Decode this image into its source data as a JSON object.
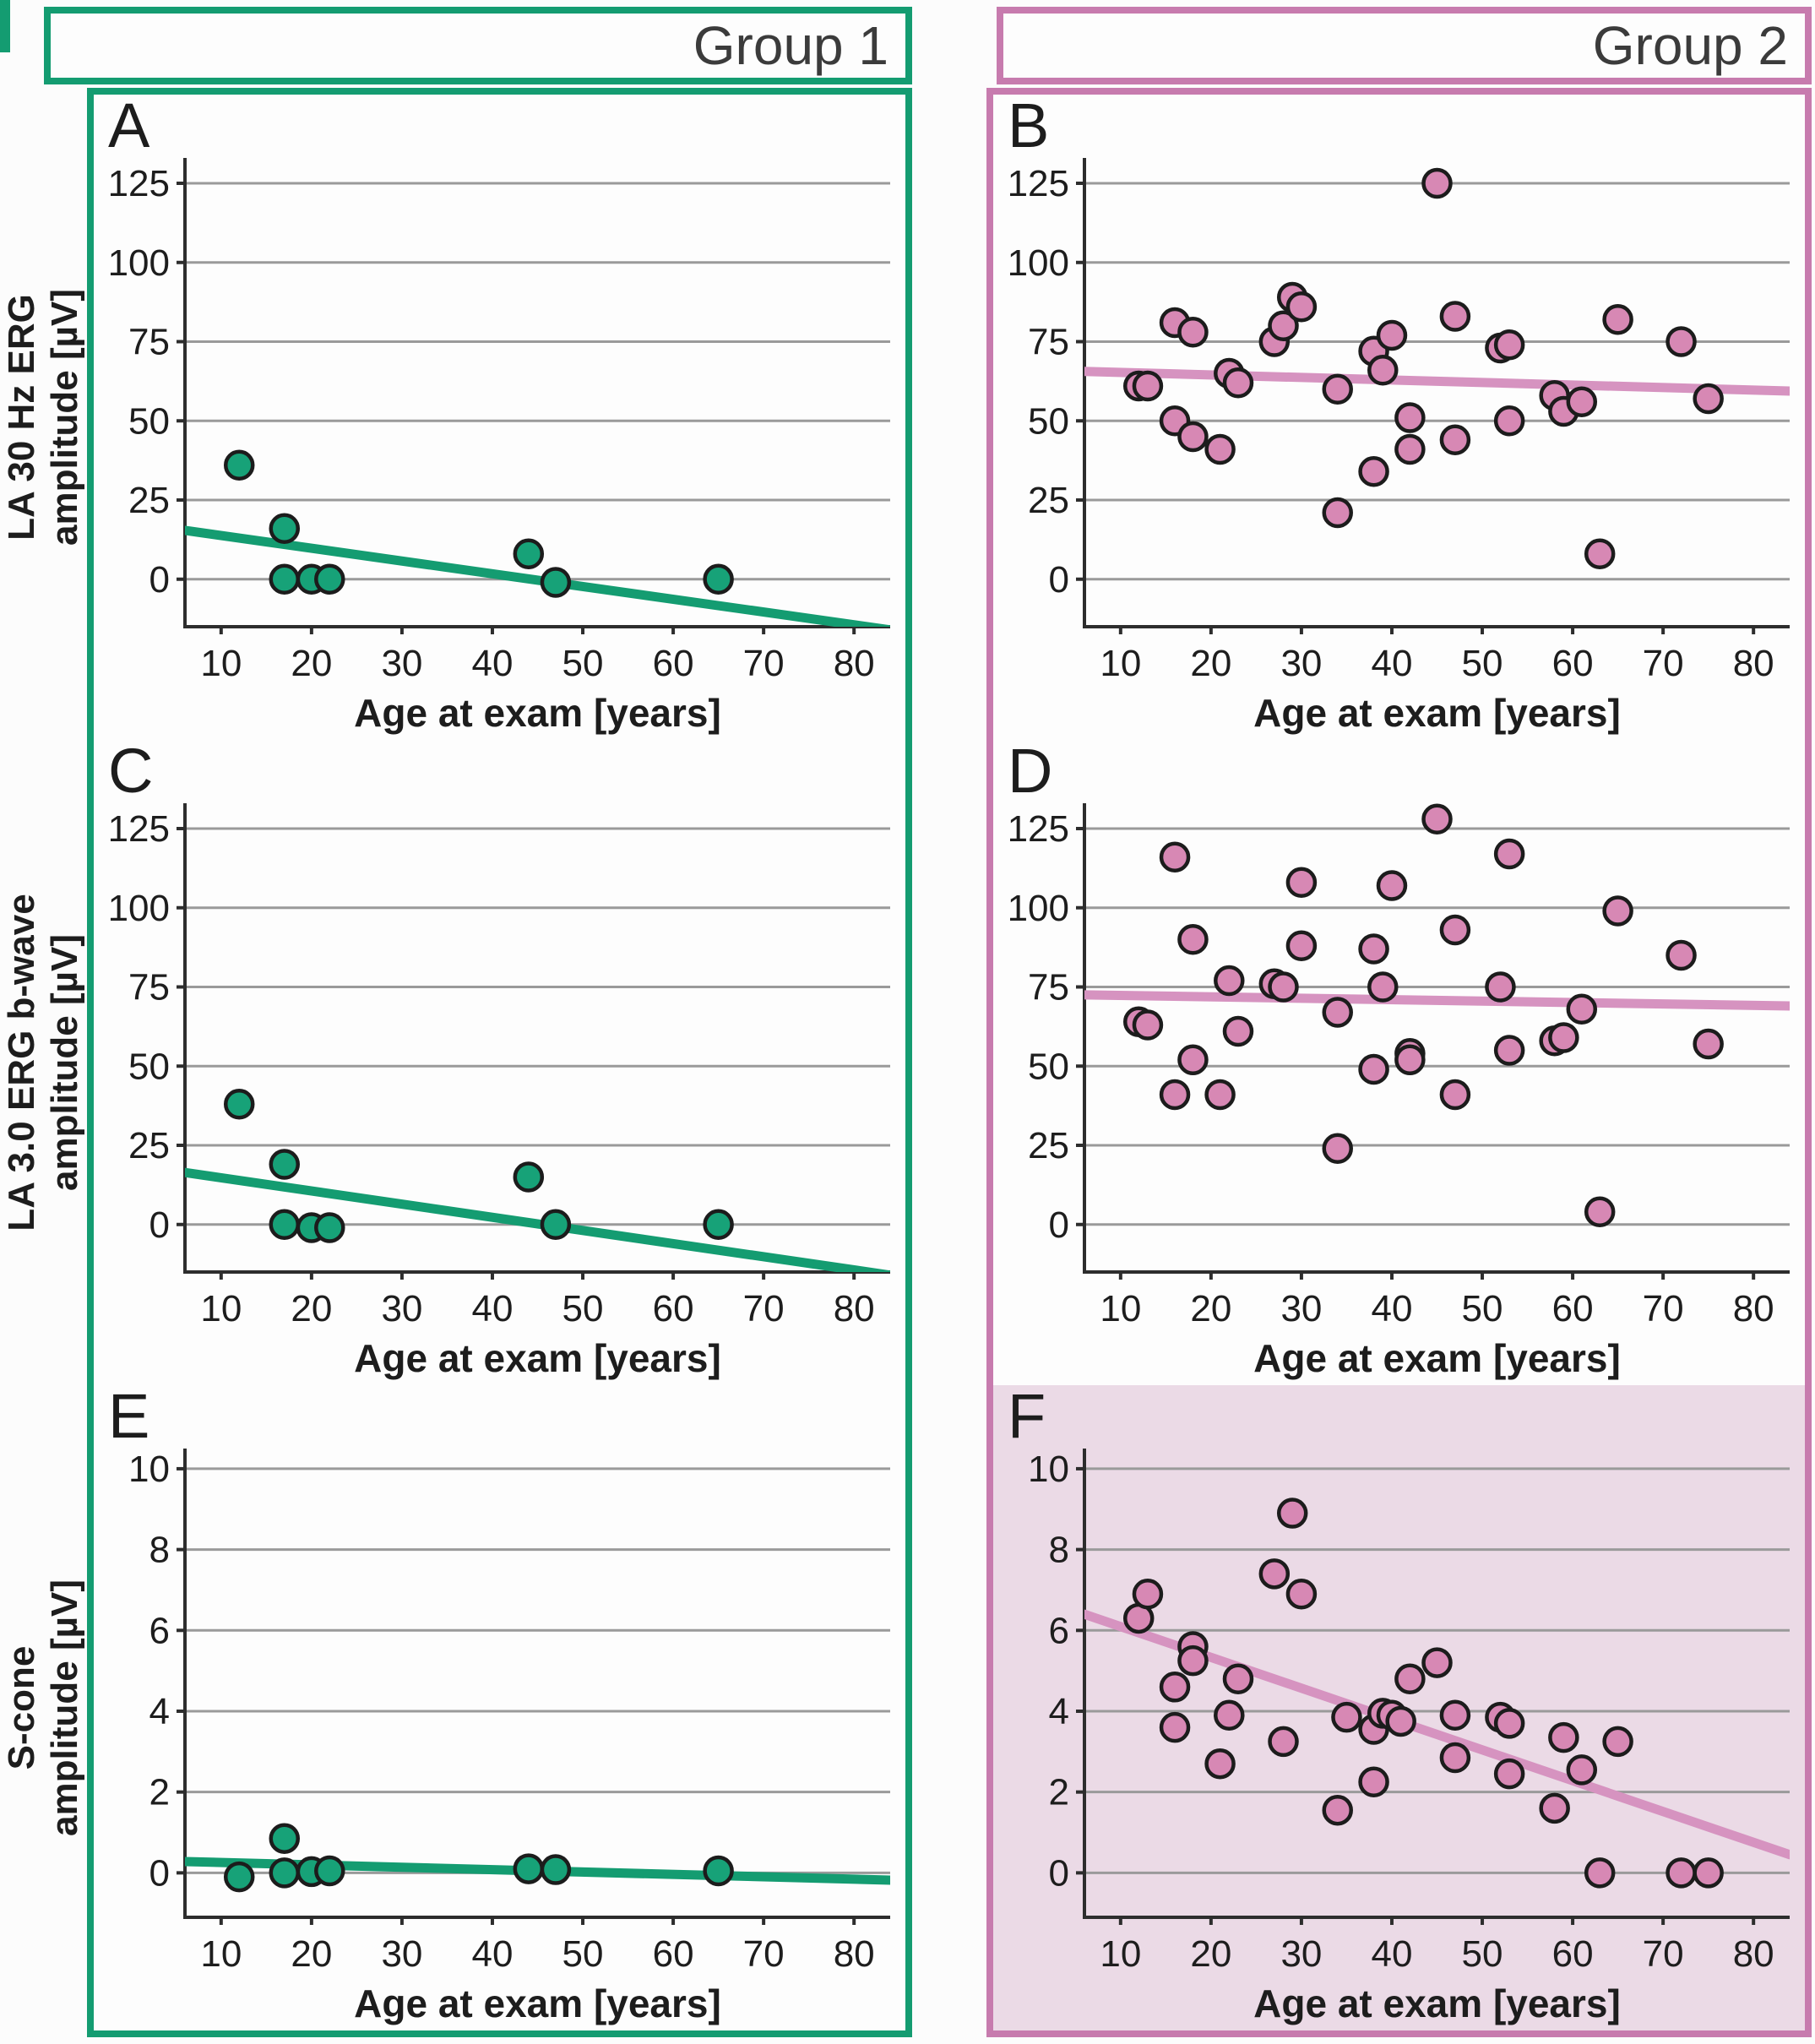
{
  "figure": {
    "group1_label": "Group 1",
    "group2_label": "Group 2",
    "row_labels": [
      {
        "line1": "LA 30 Hz ERG",
        "line2": "amplitude [µV]"
      },
      {
        "line1": "LA 3.0 ERG b-wave",
        "line2": "amplitude [µV]"
      },
      {
        "line1": "S-cone",
        "line2": "amplitude [µV]"
      }
    ],
    "colors": {
      "group1_accent": "#149C71",
      "group1_point": "#17A278",
      "group2_accent": "#C77BAE",
      "group2_point": "#D788B4",
      "group2_trend": "#D693C0",
      "panel_f_bg": "#EBDAE6",
      "gridline": "#9A9A9A",
      "axis": "#2D2D2D",
      "text": "#1D1D1D",
      "header_text": "#3B3B3B"
    }
  },
  "chart_data": [
    {
      "id": "A",
      "panel_letter": "A",
      "group": "Group 1",
      "type": "scatter",
      "xlabel": "Age at exam [years]",
      "ylabel": "LA 30 Hz ERG amplitude [µV]",
      "xlim": [
        6,
        84
      ],
      "ylim": [
        -15,
        133
      ],
      "x_ticks": [
        10,
        20,
        30,
        40,
        50,
        60,
        70,
        80
      ],
      "y_ticks": [
        0,
        25,
        50,
        75,
        100,
        125
      ],
      "grid": true,
      "legend": "none",
      "points": [
        [
          12,
          36
        ],
        [
          17,
          16
        ],
        [
          17,
          0
        ],
        [
          20,
          0
        ],
        [
          22,
          0
        ],
        [
          44,
          8
        ],
        [
          47,
          -1
        ],
        [
          65,
          0
        ]
      ],
      "trend": {
        "x1": 6,
        "y1": 15.4,
        "x2": 84,
        "y2": -16
      },
      "point_color": "#17A278",
      "trend_color": "#149C71",
      "bg": "transparent"
    },
    {
      "id": "B",
      "panel_letter": "B",
      "group": "Group 2",
      "type": "scatter",
      "xlabel": "Age at exam [years]",
      "ylabel": "LA 30 Hz ERG amplitude [µV]",
      "xlim": [
        6,
        84
      ],
      "ylim": [
        -15,
        133
      ],
      "x_ticks": [
        10,
        20,
        30,
        40,
        50,
        60,
        70,
        80
      ],
      "y_ticks": [
        0,
        25,
        50,
        75,
        100,
        125
      ],
      "grid": true,
      "legend": "none",
      "points": [
        [
          12,
          61
        ],
        [
          13,
          61
        ],
        [
          16,
          81
        ],
        [
          16,
          50
        ],
        [
          18,
          78
        ],
        [
          18,
          45
        ],
        [
          21,
          41
        ],
        [
          22,
          65
        ],
        [
          23,
          62
        ],
        [
          27,
          75
        ],
        [
          28,
          80
        ],
        [
          29,
          89
        ],
        [
          30,
          86
        ],
        [
          34,
          60
        ],
        [
          34,
          21
        ],
        [
          38,
          72
        ],
        [
          38,
          34
        ],
        [
          39,
          66
        ],
        [
          40,
          77
        ],
        [
          42,
          51
        ],
        [
          42,
          41
        ],
        [
          45,
          125
        ],
        [
          47,
          83
        ],
        [
          47,
          44
        ],
        [
          52,
          73
        ],
        [
          53,
          74
        ],
        [
          53,
          50
        ],
        [
          58,
          58
        ],
        [
          59,
          53
        ],
        [
          61,
          56
        ],
        [
          63,
          8
        ],
        [
          65,
          82
        ],
        [
          72,
          75
        ],
        [
          75,
          57
        ]
      ],
      "trend": {
        "x1": 6,
        "y1": 65.6,
        "x2": 84,
        "y2": 59.4
      },
      "point_color": "#D788B4",
      "trend_color": "#D693C0",
      "bg": "transparent"
    },
    {
      "id": "C",
      "panel_letter": "C",
      "group": "Group 1",
      "type": "scatter",
      "xlabel": "Age at exam [years]",
      "ylabel": "LA 3.0 ERG b-wave amplitude [µV]",
      "xlim": [
        6,
        84
      ],
      "ylim": [
        -15,
        133
      ],
      "x_ticks": [
        10,
        20,
        30,
        40,
        50,
        60,
        70,
        80
      ],
      "y_ticks": [
        0,
        25,
        50,
        75,
        100,
        125
      ],
      "grid": true,
      "legend": "none",
      "points": [
        [
          12,
          38
        ],
        [
          17,
          19
        ],
        [
          17,
          0
        ],
        [
          20,
          -1
        ],
        [
          22,
          -1
        ],
        [
          44,
          15
        ],
        [
          47,
          0
        ],
        [
          65,
          0
        ]
      ],
      "trend": {
        "x1": 6,
        "y1": 16.4,
        "x2": 84,
        "y2": -16
      },
      "point_color": "#17A278",
      "trend_color": "#149C71",
      "bg": "transparent"
    },
    {
      "id": "D",
      "panel_letter": "D",
      "group": "Group 2",
      "type": "scatter",
      "xlabel": "Age at exam [years]",
      "ylabel": "LA 3.0 ERG b-wave amplitude [µV]",
      "xlim": [
        6,
        84
      ],
      "ylim": [
        -15,
        133
      ],
      "x_ticks": [
        10,
        20,
        30,
        40,
        50,
        60,
        70,
        80
      ],
      "y_ticks": [
        0,
        25,
        50,
        75,
        100,
        125
      ],
      "grid": true,
      "legend": "none",
      "points": [
        [
          12,
          64
        ],
        [
          13,
          63
        ],
        [
          16,
          116
        ],
        [
          16,
          41
        ],
        [
          18,
          90
        ],
        [
          18,
          52
        ],
        [
          21,
          41
        ],
        [
          22,
          77
        ],
        [
          23,
          61
        ],
        [
          27,
          76
        ],
        [
          28,
          75
        ],
        [
          30,
          108
        ],
        [
          30,
          88
        ],
        [
          34,
          67
        ],
        [
          34,
          24
        ],
        [
          38,
          87
        ],
        [
          38,
          49
        ],
        [
          39,
          75
        ],
        [
          40,
          107
        ],
        [
          42,
          54
        ],
        [
          42,
          52
        ],
        [
          45,
          128
        ],
        [
          47,
          93
        ],
        [
          47,
          41
        ],
        [
          52,
          75
        ],
        [
          53,
          117
        ],
        [
          53,
          55
        ],
        [
          58,
          58
        ],
        [
          59,
          59
        ],
        [
          61,
          68
        ],
        [
          63,
          4
        ],
        [
          65,
          99
        ],
        [
          72,
          85
        ],
        [
          75,
          57
        ]
      ],
      "trend": {
        "x1": 6,
        "y1": 72.5,
        "x2": 84,
        "y2": 69
      },
      "point_color": "#D788B4",
      "trend_color": "#D693C0",
      "bg": "transparent"
    },
    {
      "id": "E",
      "panel_letter": "E",
      "group": "Group 1",
      "type": "scatter",
      "xlabel": "Age at exam [years]",
      "ylabel": "S-cone amplitude [µV]",
      "xlim": [
        6,
        84
      ],
      "ylim": [
        -1.1,
        10.5
      ],
      "x_ticks": [
        10,
        20,
        30,
        40,
        50,
        60,
        70,
        80
      ],
      "y_ticks": [
        0,
        2,
        4,
        6,
        8,
        10
      ],
      "grid": true,
      "legend": "none",
      "points": [
        [
          12,
          -0.1
        ],
        [
          17,
          0.85
        ],
        [
          17,
          0
        ],
        [
          20,
          0.03
        ],
        [
          22,
          0.05
        ],
        [
          44,
          0.1
        ],
        [
          47,
          0.08
        ],
        [
          65,
          0.05
        ]
      ],
      "trend": {
        "x1": 6,
        "y1": 0.28,
        "x2": 84,
        "y2": -0.18
      },
      "point_color": "#17A278",
      "trend_color": "#149C71",
      "bg": "transparent"
    },
    {
      "id": "F",
      "panel_letter": "F",
      "group": "Group 2",
      "type": "scatter",
      "xlabel": "Age at exam [years]",
      "ylabel": "S-cone amplitude [µV]",
      "xlim": [
        6,
        84
      ],
      "ylim": [
        -1.1,
        10.5
      ],
      "x_ticks": [
        10,
        20,
        30,
        40,
        50,
        60,
        70,
        80
      ],
      "y_ticks": [
        0,
        2,
        4,
        6,
        8,
        10
      ],
      "grid": true,
      "legend": "none",
      "points": [
        [
          12,
          6.3
        ],
        [
          13,
          6.9
        ],
        [
          16,
          4.6
        ],
        [
          16,
          3.6
        ],
        [
          18,
          5.6
        ],
        [
          18,
          5.25
        ],
        [
          21,
          2.7
        ],
        [
          22,
          3.9
        ],
        [
          23,
          4.8
        ],
        [
          27,
          7.4
        ],
        [
          28,
          3.25
        ],
        [
          29,
          8.9
        ],
        [
          30,
          6.9
        ],
        [
          34,
          1.55
        ],
        [
          35,
          3.85
        ],
        [
          38,
          3.55
        ],
        [
          38,
          2.25
        ],
        [
          39,
          3.95
        ],
        [
          40,
          3.9
        ],
        [
          41,
          3.75
        ],
        [
          42,
          4.8
        ],
        [
          45,
          5.2
        ],
        [
          47,
          3.9
        ],
        [
          47,
          2.85
        ],
        [
          52,
          3.85
        ],
        [
          53,
          3.7
        ],
        [
          53,
          2.45
        ],
        [
          58,
          1.6
        ],
        [
          59,
          3.35
        ],
        [
          61,
          2.55
        ],
        [
          63,
          0
        ],
        [
          65,
          3.25
        ],
        [
          72,
          0
        ],
        [
          75,
          0
        ]
      ],
      "trend": {
        "x1": 6,
        "y1": 6.4,
        "x2": 84,
        "y2": 0.45
      },
      "point_color": "#D788B4",
      "trend_color": "#D693C0",
      "bg": "#EBDAE6"
    }
  ]
}
